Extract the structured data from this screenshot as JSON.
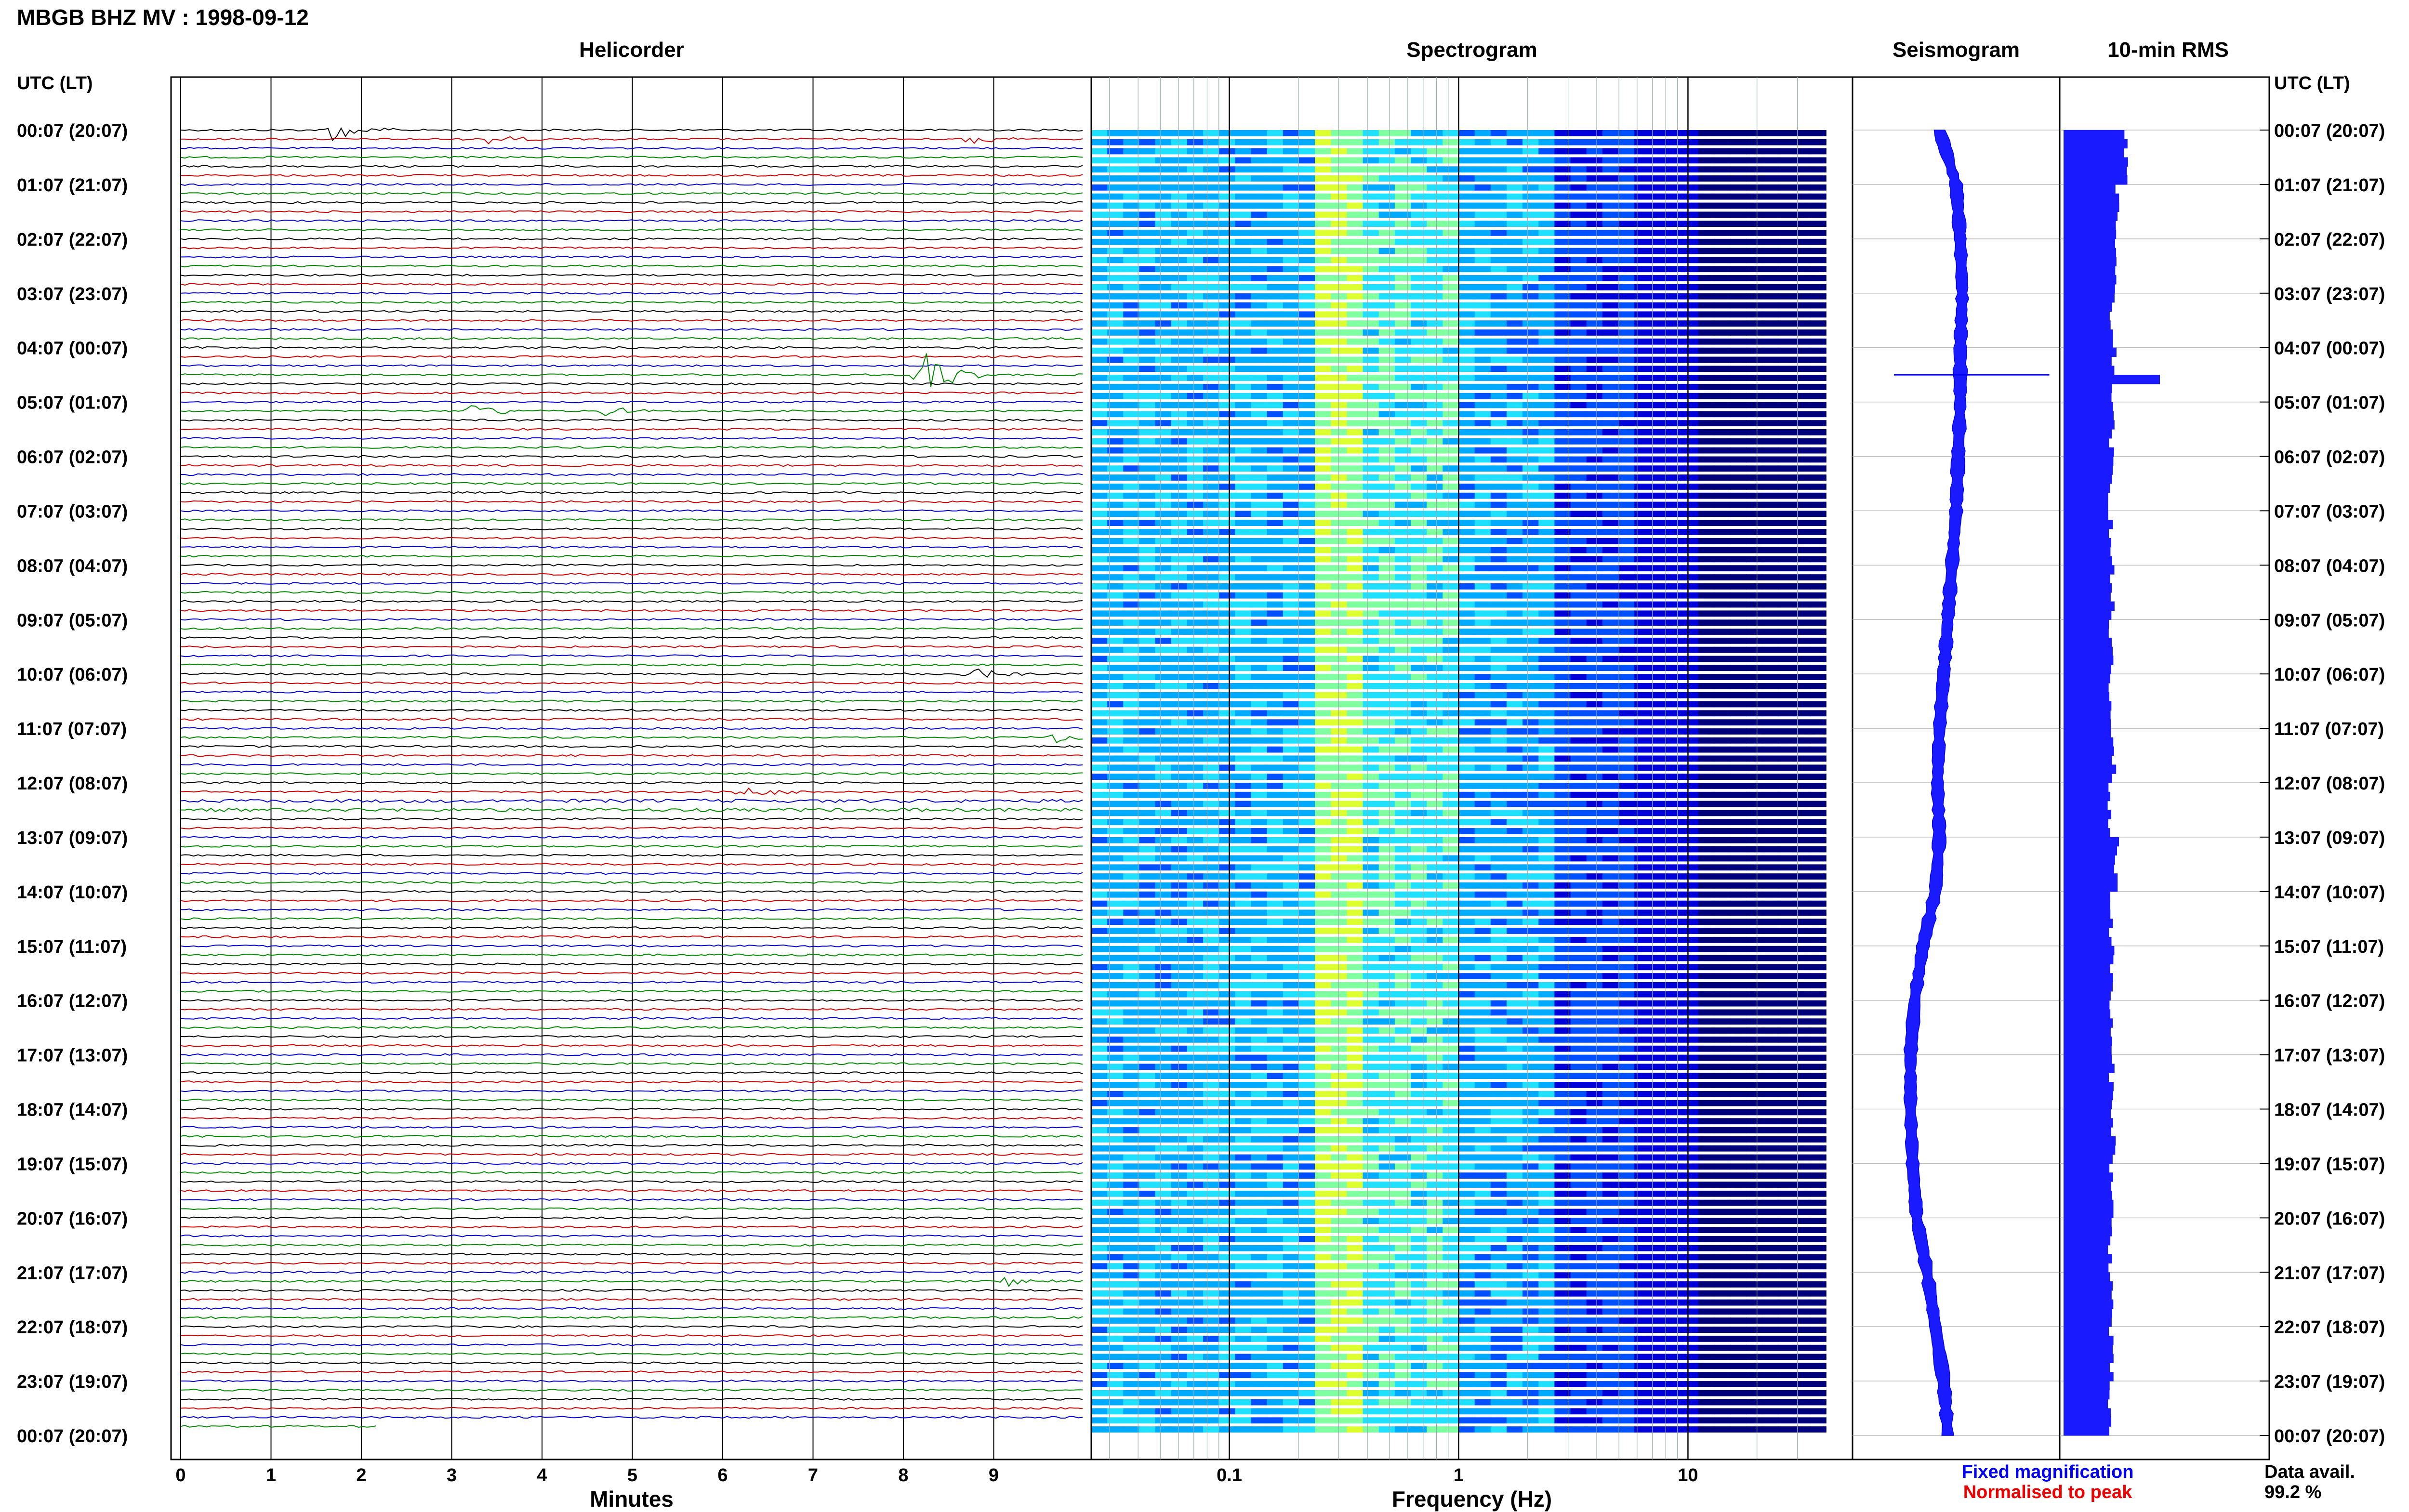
{
  "title": "MBGB BHZ MV : 1998-09-12",
  "panels": {
    "helicorder": "Helicorder",
    "spectrogram": "Spectrogram",
    "seismogram": "Seismogram",
    "rms": "10-min RMS"
  },
  "axis_header_left": "UTC (LT)",
  "axis_header_right": "UTC (LT)",
  "time_labels": [
    "00:07 (20:07)",
    "01:07 (21:07)",
    "02:07 (22:07)",
    "03:07 (23:07)",
    "04:07 (00:07)",
    "05:07 (01:07)",
    "06:07 (02:07)",
    "07:07 (03:07)",
    "08:07 (04:07)",
    "09:07 (05:07)",
    "10:07 (06:07)",
    "11:07 (07:07)",
    "12:07 (08:07)",
    "13:07 (09:07)",
    "14:07 (10:07)",
    "15:07 (11:07)",
    "16:07 (12:07)",
    "17:07 (13:07)",
    "18:07 (14:07)",
    "19:07 (15:07)",
    "20:07 (16:07)",
    "21:07 (17:07)",
    "22:07 (18:07)",
    "23:07 (19:07)",
    "00:07 (20:07)"
  ],
  "legend": {
    "fixed": "Fixed magnification",
    "normalised": "Normalised to peak",
    "fixed_color": "#0000ee",
    "normalised_color": "#ee0000"
  },
  "data_avail": {
    "label": "Data avail.",
    "value": "99.2 %"
  },
  "chart_data": [
    {
      "type": "line",
      "title": "Helicorder",
      "xlabel": "Minutes",
      "x_ticks": [
        "0",
        "1",
        "2",
        "3",
        "4",
        "5",
        "6",
        "7",
        "8",
        "9"
      ],
      "xlim": [
        0,
        10
      ],
      "rows_per_hour": 6,
      "trace_colors": [
        "#000000",
        "#cc0000",
        "#0000cc",
        "#008800"
      ],
      "events": [
        {
          "time": "00:07",
          "minute": 1.7,
          "row": 0,
          "amp": 4
        },
        {
          "time": "00:17",
          "minute": 3.4,
          "row": 1,
          "amp": 1.5
        },
        {
          "time": "00:17",
          "minute": 8.7,
          "row": 1,
          "amp": 1.5
        },
        {
          "time": "04:37",
          "minute": 8.2,
          "row": 27,
          "amp": 9
        },
        {
          "time": "05:17",
          "minute": 3.2,
          "row": 31,
          "amp": 2.5
        },
        {
          "time": "05:17",
          "minute": 4.7,
          "row": 31,
          "amp": 1.5
        },
        {
          "time": "10:07",
          "minute": 8.7,
          "row": 60,
          "amp": 2.5
        },
        {
          "time": "11:17",
          "minute": 9.7,
          "row": 67,
          "amp": 2
        },
        {
          "time": "12:17",
          "minute": 6.2,
          "row": 73,
          "amp": 2
        },
        {
          "time": "21:17",
          "minute": 9.1,
          "row": 127,
          "amp": 2
        }
      ]
    },
    {
      "type": "heatmap",
      "title": "Spectrogram",
      "xlabel": "Frequency (Hz)",
      "x_scale": "log",
      "x_ticks": [
        "0.1",
        "1",
        "10"
      ],
      "xlim": [
        0.025,
        40
      ],
      "colormap": [
        "#00007a",
        "#0000d8",
        "#0050ff",
        "#00aaff",
        "#20e0ff",
        "#80ffa0",
        "#ddff30"
      ],
      "energy_peak_hz": [
        0.2,
        0.3
      ]
    },
    {
      "type": "line",
      "title": "Seismogram",
      "series": [
        {
          "values_by_hour": [
            0.42,
            0.5,
            0.52,
            0.53,
            0.52,
            0.52,
            0.51,
            0.5,
            0.48,
            0.46,
            0.44,
            0.42,
            0.41,
            0.42,
            0.4,
            0.34,
            0.3,
            0.28,
            0.28,
            0.29,
            0.31,
            0.36,
            0.4,
            0.44,
            0.46
          ]
        }
      ]
    },
    {
      "type": "bar",
      "title": "10-min RMS",
      "orientation": "horizontal",
      "values_by_hour": [
        0.65,
        0.55,
        0.53,
        0.5,
        0.52,
        0.5,
        0.49,
        0.49,
        0.5,
        0.49,
        0.48,
        0.52,
        0.48,
        0.55,
        0.5,
        0.5,
        0.49,
        0.5,
        0.52,
        0.5,
        0.49,
        0.5,
        0.49,
        0.48,
        0.4
      ],
      "spike": {
        "time": "04:37",
        "value": 1.0
      }
    }
  ]
}
